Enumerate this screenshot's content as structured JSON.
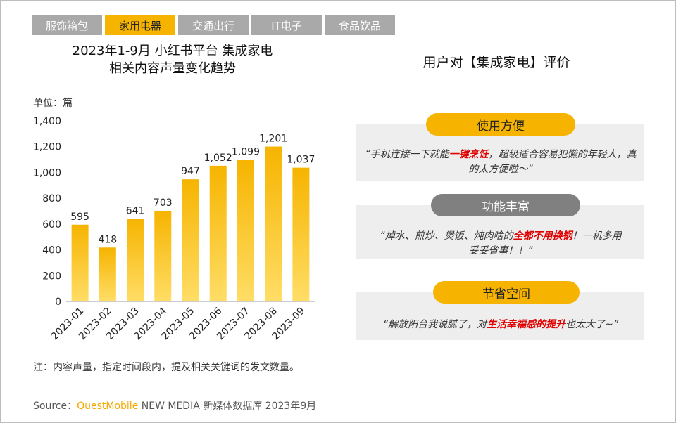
{
  "tabs": [
    {
      "label": "服饰箱包",
      "active": false
    },
    {
      "label": "家用电器",
      "active": true
    },
    {
      "label": "交通出行",
      "active": false
    },
    {
      "label": "IT电子",
      "active": false
    },
    {
      "label": "食品饮品",
      "active": false
    }
  ],
  "chart_title_line1": "2023年1-9月 小红书平台 集成家电",
  "chart_title_line2": "相关内容声量变化趋势",
  "unit_label": "单位：篇",
  "chart_data": {
    "type": "bar",
    "title": "2023年1-9月 小红书平台 集成家电 相关内容声量变化趋势",
    "ylabel": "单位：篇",
    "categories": [
      "2023-01",
      "2023-02",
      "2023-03",
      "2023-04",
      "2023-05",
      "2023-06",
      "2023-07",
      "2023-08",
      "2023-09"
    ],
    "values": [
      595,
      418,
      641,
      703,
      947,
      1052,
      1099,
      1201,
      1037
    ],
    "value_labels": [
      "595",
      "418",
      "641",
      "703",
      "947",
      "1,052",
      "1,099",
      "1,201",
      "1,037"
    ],
    "ylim": [
      0,
      1400
    ],
    "yticks": [
      0,
      200,
      400,
      600,
      800,
      1000,
      1200,
      1400
    ],
    "ytick_labels": [
      "0",
      "200",
      "400",
      "600",
      "800",
      "1,000",
      "1,200",
      "1,400"
    ],
    "bar_color_top": "#f6b400",
    "bar_color_bottom": "#ffdd66",
    "grid": false
  },
  "reviews": {
    "title": "用户对【集成家电】评价",
    "items": [
      {
        "tag": "使用方便",
        "tag_style": "yellow",
        "quote_pre": "“手机连接一下就能",
        "quote_highlight": "一键烹饪",
        "quote_post": "，超级适合容易犯懒的年轻人，真的太方便啦～”"
      },
      {
        "tag": "功能丰富",
        "tag_style": "gray",
        "quote_pre": "“焯水、煎炒、煲饭、炖肉啥的",
        "quote_highlight": "全都不用换锅",
        "quote_post": "！一机多用妥妥省事！！”"
      },
      {
        "tag": "节省空间",
        "tag_style": "yellow",
        "quote_pre": "“解放阳台我说腻了，对",
        "quote_highlight": "生活幸福感的提升",
        "quote_post": "也太大了~”"
      }
    ]
  },
  "note": "注：内容声量，指定时间段内，提及相关关键词的发文数量。",
  "source": {
    "prefix": "Source：",
    "brand": "QuestMobile",
    "suffix": " NEW MEDIA 新媒体数据库 2023年9月"
  },
  "colors": {
    "accent": "#f6b400",
    "highlight": "#e00000",
    "tab_inactive": "#a9a9a9",
    "panel": "#eeeeee"
  }
}
